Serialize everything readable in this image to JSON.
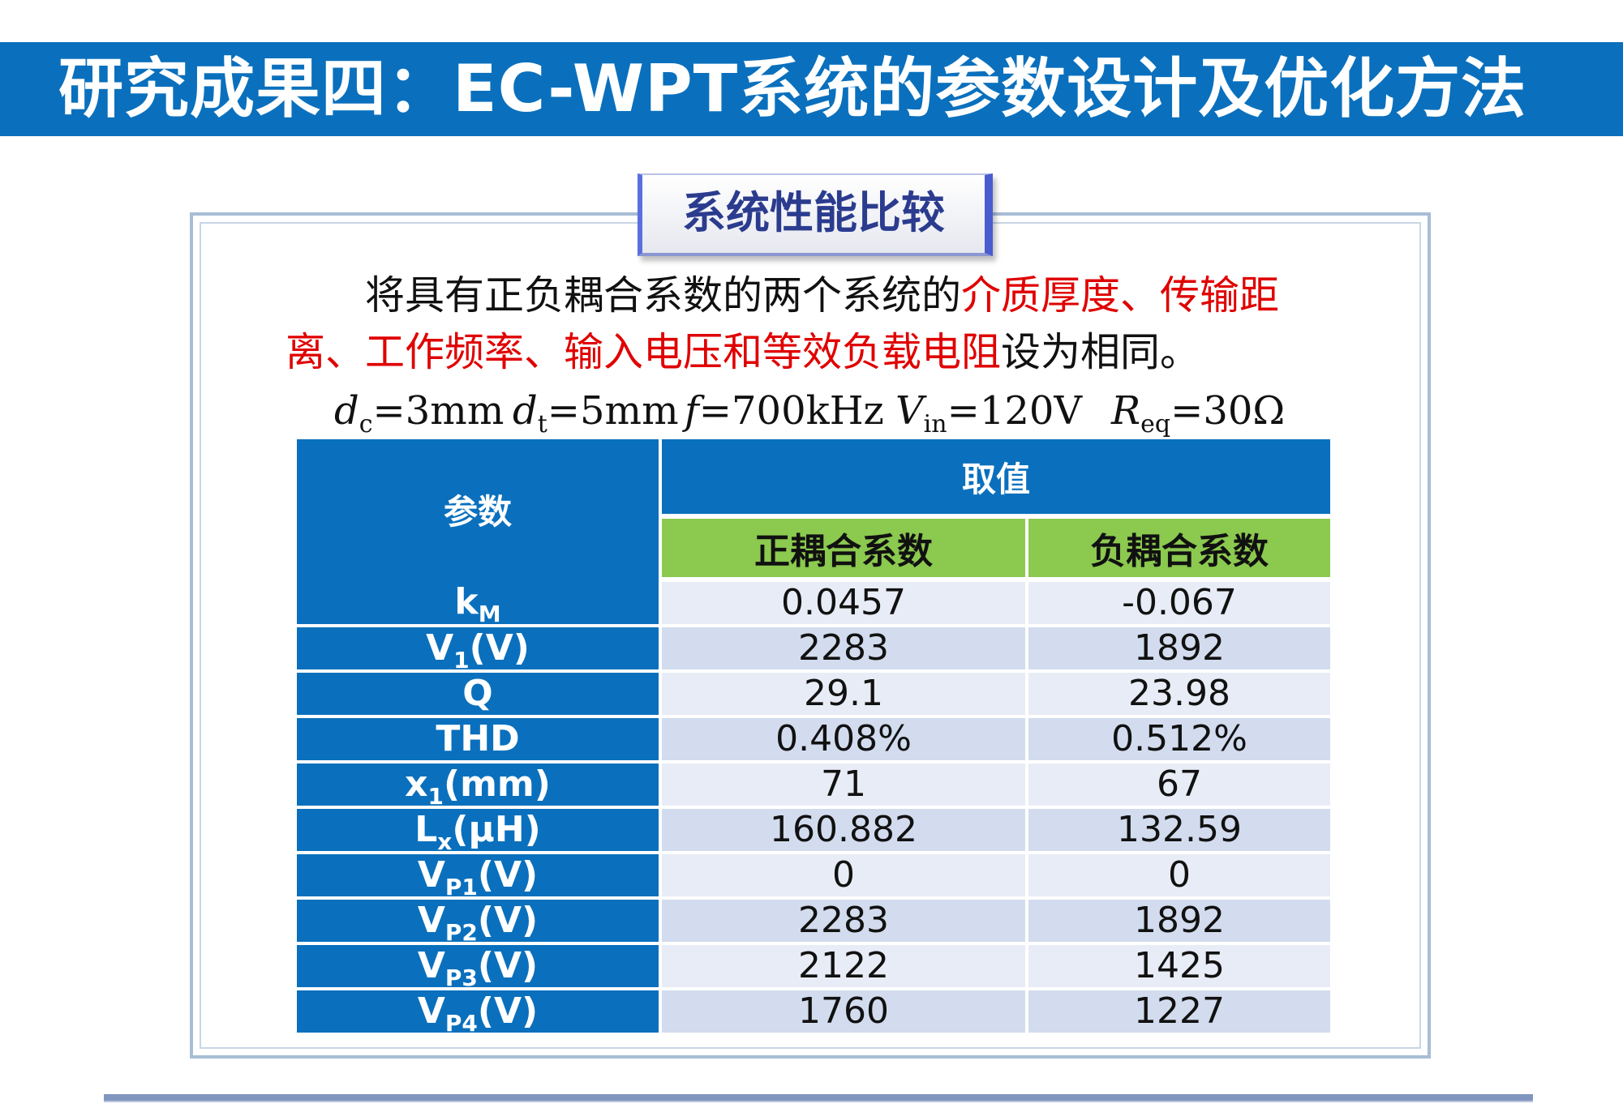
{
  "title": "研究成果四：EC-WPT系统的参数设计及优化方法",
  "panel": {
    "tab_label": "系统性能比较",
    "description": {
      "line1_a": "将具有正负耦合系数的两个系统的",
      "line1_b": "介质厚度、传输距",
      "line2_a": "离、工作频率、输入电压和等效负载电阻",
      "line2_b": "设为相同。"
    },
    "params": [
      {
        "sym": "d",
        "sub": "c",
        "val": "=3mm"
      },
      {
        "sym": "d",
        "sub": "t",
        "val": "=5mm"
      },
      {
        "sym": "f",
        "sub": "",
        "val": "=700kHz"
      },
      {
        "sym": "V",
        "sub": "in",
        "val": "=120V"
      },
      {
        "sym": "R",
        "sub": "eq",
        "val": "=30Ω"
      }
    ]
  },
  "table": {
    "header_param": "参数",
    "header_value": "取值",
    "header_pos": "正耦合系数",
    "header_neg": "负耦合系数",
    "rows": [
      {
        "name": "k",
        "sub": "M",
        "unit": "",
        "pos": "0.0457",
        "neg": "-0.067"
      },
      {
        "name": "V",
        "sub": "1",
        "unit": "(V)",
        "pos": "2283",
        "neg": "1892"
      },
      {
        "name": "Q",
        "sub": "",
        "unit": "",
        "pos": "29.1",
        "neg": "23.98"
      },
      {
        "name": "THD",
        "sub": "",
        "unit": "",
        "pos": "0.408%",
        "neg": "0.512%"
      },
      {
        "name": "x",
        "sub": "1",
        "unit": "(mm)",
        "pos": "71",
        "neg": "67"
      },
      {
        "name": "L",
        "sub": "x",
        "unit": "(μH)",
        "pos": "160.882",
        "neg": "132.59"
      },
      {
        "name": "V",
        "sub": "P1",
        "unit": "(V)",
        "pos": "0",
        "neg": "0"
      },
      {
        "name": "V",
        "sub": "P2",
        "unit": "(V)",
        "pos": "2283",
        "neg": "1892"
      },
      {
        "name": "V",
        "sub": "P3",
        "unit": "(V)",
        "pos": "2122",
        "neg": "1425"
      },
      {
        "name": "V",
        "sub": "P4",
        "unit": "(V)",
        "pos": "1760",
        "neg": "1227"
      }
    ]
  },
  "colors": {
    "title_bar": "#0a70bd",
    "table_header_blue": "#0a70bd",
    "table_subheader_green": "#8bc94f",
    "highlight_red": "#e00000"
  }
}
